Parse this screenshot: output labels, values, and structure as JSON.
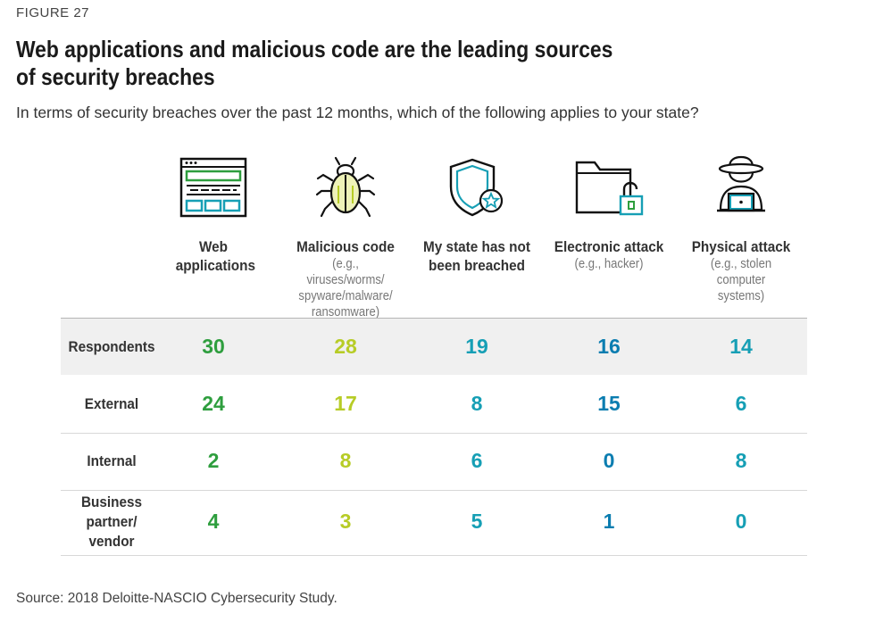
{
  "figure_label": "FIGURE 27",
  "title": "Web applications and malicious code are the leading sources of security breaches",
  "subtitle": "In terms of security breaches over the past 12 months, which of the following applies to your state?",
  "source": "Source: 2018 Deloitte-NASCIO Cybersecurity Study.",
  "colors": {
    "green": "#2e9e3e",
    "lime": "#b7cc26",
    "teal": "#169fb5",
    "blue": "#0b7db0",
    "icon_dark": "#111111",
    "row_shade": "#f0f0f0"
  },
  "columns": [
    {
      "label": "Web applications",
      "note": "",
      "icon": "web-application-icon",
      "color": "#2e9e3e"
    },
    {
      "label": "Malicious code",
      "note": "(e.g., viruses/worms/ spyware/malware/ ransomware)",
      "icon": "bug-icon",
      "color": "#b7cc26"
    },
    {
      "label": "My state has not been breached",
      "note": "",
      "icon": "shield-icon",
      "color": "#169fb5"
    },
    {
      "label": "Electronic attack",
      "note": "(e.g., hacker)",
      "icon": "folder-lock-icon",
      "color": "#0b7db0"
    },
    {
      "label": "Physical attack",
      "note": "(e.g., stolen computer systems)",
      "icon": "hacker-icon",
      "color": "#169fb5"
    }
  ],
  "chart_data": {
    "type": "table",
    "title": "Web applications and malicious code are the leading sources of security breaches",
    "subtitle": "In terms of security breaches over the past 12 months, which of the following applies to your state?",
    "columns": [
      "Web applications",
      "Malicious code",
      "My state has not been breached",
      "Electronic attack",
      "Physical attack"
    ],
    "rows": [
      {
        "label": "Respondents",
        "values": [
          30,
          28,
          19,
          16,
          14
        ]
      },
      {
        "label": "External",
        "values": [
          24,
          17,
          8,
          15,
          6
        ]
      },
      {
        "label": "Internal",
        "values": [
          2,
          8,
          6,
          0,
          8
        ]
      },
      {
        "label": "Business partner/ vendor",
        "values": [
          4,
          3,
          5,
          1,
          0
        ]
      }
    ]
  }
}
